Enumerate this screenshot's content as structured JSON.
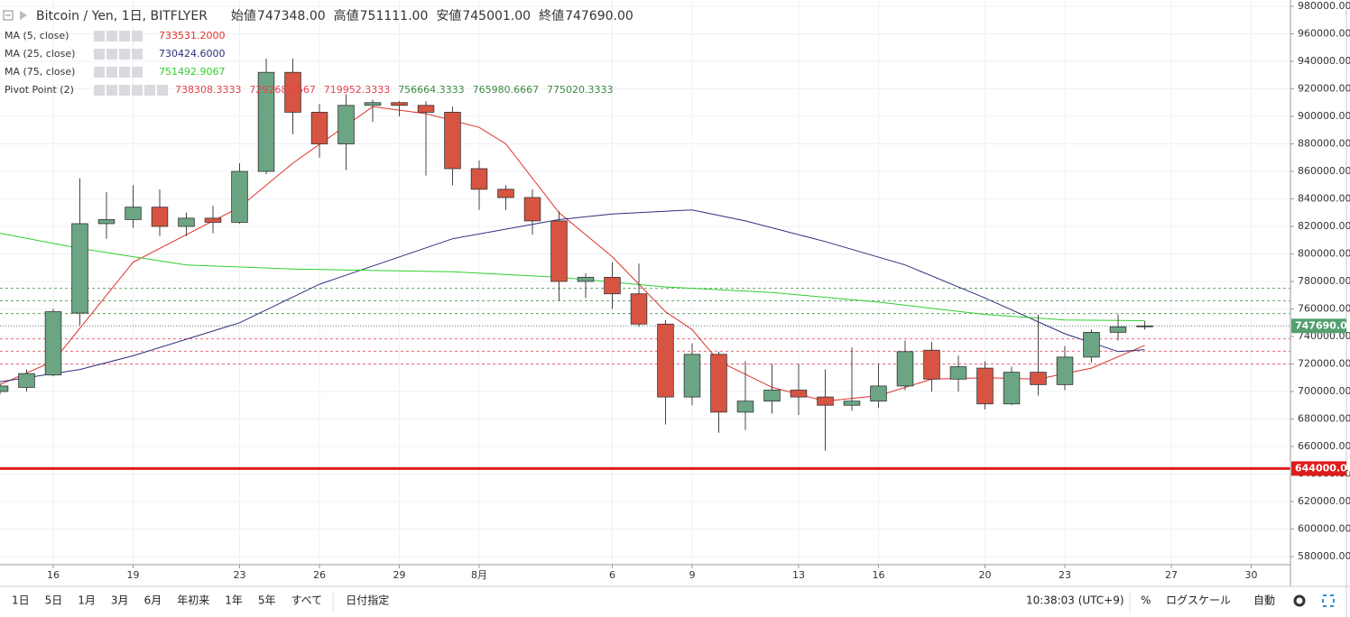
{
  "header": {
    "title": "Bitcoin / Yen, 1日, BITFLYER",
    "open_label": "始値",
    "open": "747348.00",
    "high_label": "高値",
    "high": "751111.00",
    "low_label": "安値",
    "low": "745001.00",
    "close_label": "終値",
    "close": "747690.00"
  },
  "toolbar": {
    "ranges": [
      "1日",
      "5日",
      "1月",
      "3月",
      "6月",
      "年初来",
      "1年",
      "5年",
      "すべて"
    ],
    "date_button": "日付指定",
    "clock": "10:38:03 (UTC+9)",
    "percent": "%",
    "log": "ログスケール",
    "auto": "自動"
  },
  "chart_data": {
    "type": "candlestick",
    "up_color": "#6ba583",
    "down_color": "#d75442",
    "grid": true,
    "x": [
      14,
      15,
      16,
      17,
      18,
      19,
      20,
      21,
      22,
      23,
      24,
      25,
      26,
      27,
      28,
      29,
      30,
      31,
      32,
      33,
      34,
      35,
      36,
      37,
      38,
      39,
      40,
      41,
      42,
      43,
      44,
      45,
      46,
      47,
      48,
      49,
      50,
      51,
      52,
      53,
      54,
      55,
      56,
      57
    ],
    "open": [
      700000,
      703000,
      712000,
      757000,
      822000,
      825000,
      834000,
      820000,
      826000,
      823000,
      860000,
      932000,
      903000,
      880000,
      908000,
      910000,
      908000,
      903000,
      862000,
      847000,
      841000,
      824000,
      780000,
      783000,
      771000,
      749000,
      696000,
      727000,
      685000,
      693000,
      701000,
      696000,
      690000,
      693000,
      704000,
      730000,
      709000,
      717000,
      691000,
      714000,
      705000,
      725000,
      743000,
      747348
    ],
    "high": [
      706000,
      716000,
      760000,
      855000,
      845000,
      850000,
      847000,
      830000,
      835000,
      866000,
      942000,
      942000,
      909000,
      916000,
      912000,
      911000,
      911000,
      907000,
      868000,
      850000,
      847000,
      831000,
      786000,
      794000,
      793000,
      752000,
      735000,
      729000,
      722000,
      720000,
      720000,
      716000,
      732000,
      720000,
      737000,
      736000,
      726000,
      722000,
      718000,
      756000,
      733000,
      745000,
      756000,
      751111
    ],
    "low": [
      698000,
      700000,
      711000,
      748000,
      811000,
      819000,
      813000,
      813000,
      815000,
      822000,
      858000,
      887000,
      870000,
      861000,
      896000,
      900000,
      857000,
      850000,
      832000,
      832000,
      814000,
      766000,
      768000,
      760000,
      747000,
      676000,
      690000,
      670000,
      672000,
      684000,
      683000,
      657000,
      686000,
      688000,
      701000,
      700000,
      700000,
      687000,
      690000,
      697000,
      701000,
      721000,
      737000,
      745001
    ],
    "close": [
      704000,
      713000,
      758000,
      822000,
      825000,
      834000,
      820000,
      826000,
      823000,
      860000,
      932000,
      903000,
      880000,
      908000,
      910000,
      908000,
      903000,
      862000,
      847000,
      841000,
      824000,
      780000,
      783000,
      771000,
      749000,
      696000,
      727000,
      685000,
      693000,
      701000,
      696000,
      690000,
      693000,
      704000,
      729000,
      709000,
      718000,
      691000,
      714000,
      705000,
      725000,
      743000,
      747000,
      747690
    ],
    "series": [
      {
        "name": "MA (5, close)",
        "color": "#e0302a",
        "legend_value": "733531.2000",
        "x": [
          14,
          16,
          19,
          23,
          25,
          28,
          30,
          32,
          33,
          35,
          37,
          39,
          40,
          41,
          43,
          45,
          47,
          49,
          51,
          53,
          55,
          57
        ],
        "values": [
          705000,
          722000,
          794000,
          834000,
          866000,
          907000,
          902000,
          892000,
          880000,
          830000,
          798000,
          758000,
          745000,
          722000,
          703000,
          693000,
          697000,
          709000,
          710000,
          709000,
          717000,
          733531.2
        ]
      },
      {
        "name": "MA (25, close)",
        "color": "#2e2f7c",
        "legend_value": "730424.6000",
        "x": [
          14,
          17,
          19,
          23,
          26,
          31,
          35,
          37,
          40,
          42,
          45,
          48,
          51,
          54,
          56,
          57
        ],
        "values": [
          707000,
          716000,
          726000,
          750000,
          778000,
          811000,
          825000,
          829000,
          832000,
          824000,
          809000,
          792000,
          768000,
          742000,
          729000,
          730424.6
        ]
      },
      {
        "name": "MA (75, close)",
        "color": "#2fcf2f",
        "legend_value": "751492.9067",
        "x": [
          14,
          17,
          21,
          25,
          31,
          35,
          39,
          43,
          47,
          51,
          54,
          57
        ],
        "values": [
          815000,
          804000,
          792000,
          789000,
          787000,
          783000,
          776000,
          772000,
          765000,
          756000,
          752000,
          751492.9
        ]
      }
    ],
    "pivot": {
      "name": "Pivot Point (2)",
      "levels": [
        738308.3333,
        729268.6667,
        719952.3333,
        756664.3333,
        765980.6667,
        775020.3333
      ],
      "level_labels": [
        "738308.3333",
        "729268.6667",
        "719952.3333",
        "756664.3333",
        "765980.6667",
        "775020.3333"
      ],
      "colors": [
        "#e8404e",
        "#e8404e",
        "#e8404e",
        "#3c8a3c",
        "#3c8a3c",
        "#3c8a3c"
      ]
    },
    "price_line": {
      "value": 747690,
      "label": "747690.00",
      "color": "#53a070"
    },
    "horizontal_line": {
      "value": 644000,
      "label": "644000.00",
      "color": "#e01b1b"
    },
    "xlim": [
      14,
      62.475
    ],
    "xticks": [
      16,
      19,
      23,
      26,
      29,
      {
        "value": 32,
        "label": "8月"
      },
      {
        "value": 37,
        "label": "6"
      },
      {
        "value": 40,
        "label": "9"
      },
      {
        "value": 44,
        "label": "13"
      },
      {
        "value": 47,
        "label": "16"
      },
      {
        "value": 51,
        "label": "20"
      },
      {
        "value": 54,
        "label": "23"
      },
      {
        "value": 58,
        "label": "27"
      },
      {
        "value": 61,
        "label": "30"
      }
    ],
    "ylim": [
      574100,
      984600
    ],
    "yticks": [
      {
        "value": 580000,
        "label": "580000.00"
      },
      {
        "value": 600000,
        "label": "600000.00"
      },
      {
        "value": 620000,
        "label": "620000.00"
      },
      {
        "value": 640000,
        "label": "640000.00"
      },
      {
        "value": 660000,
        "label": "660000.00"
      },
      {
        "value": 680000,
        "label": "680000.00"
      },
      {
        "value": 700000,
        "label": "700000.00"
      },
      {
        "value": 720000,
        "label": "720000.00"
      },
      {
        "value": 740000,
        "label": "740000.00"
      },
      {
        "value": 760000,
        "label": "760000.00"
      },
      {
        "value": 780000,
        "label": "780000.00"
      },
      {
        "value": 800000,
        "label": "800000.00"
      },
      {
        "value": 820000,
        "label": "820000.00"
      },
      {
        "value": 840000,
        "label": "840000.00"
      },
      {
        "value": 860000,
        "label": "860000.00"
      },
      {
        "value": 880000,
        "label": "880000.00"
      },
      {
        "value": 900000,
        "label": "900000.00"
      },
      {
        "value": 920000,
        "label": "920000.00"
      },
      {
        "value": 940000,
        "label": "940000.00"
      },
      {
        "value": 960000,
        "label": "960000.00"
      },
      {
        "value": 980000,
        "label": "980000.00"
      }
    ]
  }
}
